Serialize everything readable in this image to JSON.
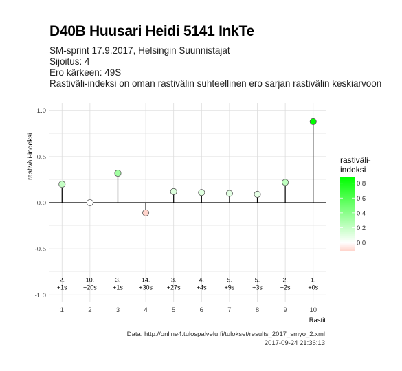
{
  "chart_data": {
    "type": "lollipop",
    "title": "D40B Huusari Heidi 5141 InkTe",
    "subtitle": [
      "SM-sprint 17.9.2017, Helsingin Suunnistajat",
      "Sijoitus: 4",
      "Ero kärkeen: 49S",
      "Rastiväli-indeksi on oman rastivälin suhteellinen ero sarjan rastivälin keskiarvoon"
    ],
    "xlabel": "Rastit",
    "ylabel": "rastiväli-indeksi",
    "x": [
      1,
      2,
      3,
      4,
      5,
      6,
      7,
      8,
      9,
      10
    ],
    "values": [
      0.2,
      0.0,
      0.32,
      -0.11,
      0.12,
      0.11,
      0.1,
      0.09,
      0.22,
      0.88
    ],
    "split_labels": [
      [
        "2.",
        "+1s"
      ],
      [
        "10.",
        "+20s"
      ],
      [
        "3.",
        "+1s"
      ],
      [
        "14.",
        "+30s"
      ],
      [
        "3.",
        "+27s"
      ],
      [
        "4.",
        "+4s"
      ],
      [
        "5.",
        "+9s"
      ],
      [
        "5.",
        "+3s"
      ],
      [
        "2.",
        "+2s"
      ],
      [
        "1.",
        "+0s"
      ]
    ],
    "ylim": [
      -1.0,
      1.0
    ],
    "yticks": [
      1.0,
      0.5,
      0.0,
      -0.5,
      -1.0
    ],
    "ytick_labels": [
      "1.0",
      "0.5",
      "0.0",
      "-0.5",
      "-1.0"
    ],
    "grid": true,
    "legend": {
      "title": "rastiväli-indeksi",
      "position": "right",
      "ticks": [
        0.8,
        0.6,
        0.4,
        0.2,
        0.0
      ],
      "tick_labels": [
        "0.8",
        "0.6",
        "0.4",
        "0.2",
        "0.0"
      ],
      "range": [
        -0.11,
        0.88
      ],
      "colors": {
        "low": "#ffd4cc",
        "mid": "#ffffff",
        "high": "#00ff00"
      }
    },
    "caption": [
      "Data: http://online4.tulospalvelu.fi/tulokset/results_2017_smyo_2.xml",
      "2017-09-24 21:36:13"
    ]
  }
}
